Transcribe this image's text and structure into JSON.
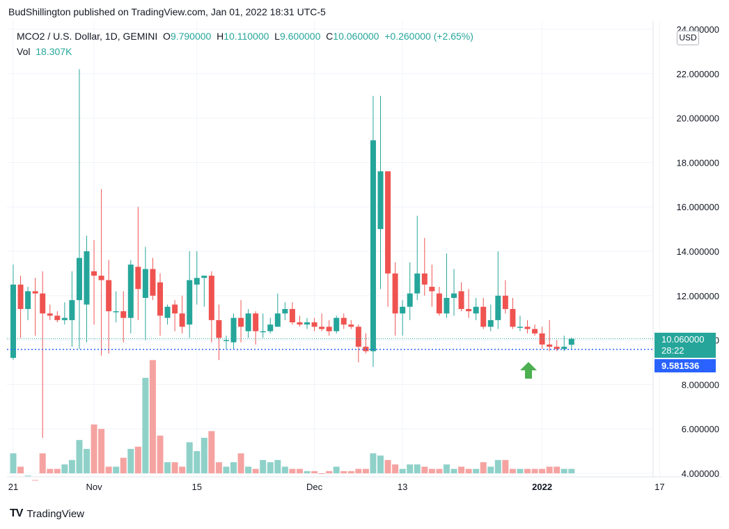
{
  "header": {
    "published": "BudShillington published on TradingView.com, Jan 01, 2022 18:31 UTC-5"
  },
  "legend": {
    "symbol": "MCO2 / U.S. Dollar, 1D, GEMINI",
    "o_label": "O",
    "o_value": "9.790000",
    "h_label": "H",
    "h_value": "10.110000",
    "l_label": "L",
    "l_value": "9.600000",
    "c_label": "C",
    "c_value": "10.060000",
    "change": "+0.260000 (+2.65%)",
    "vol_label": "Vol",
    "vol_value": "18.307K"
  },
  "currency_button": "USD",
  "price_tags": {
    "last": "10.060000",
    "countdown": "28:22",
    "avg": "9.581536"
  },
  "footer": {
    "brand": "TradingView",
    "logo_text": "TV"
  },
  "colors": {
    "up": "#26a69a",
    "down": "#ef5350",
    "vol_up": "#8fd1c9",
    "vol_down": "#f5a3a1",
    "avg_line": "#2962ff",
    "arrow": "#4caf50"
  },
  "chart_data": {
    "type": "candlestick",
    "ylim": [
      4,
      24
    ],
    "y_ticks": [
      "24.000000",
      "22.000000",
      "20.000000",
      "18.000000",
      "16.000000",
      "14.000000",
      "12.000000",
      "10.000000",
      "8.000000",
      "6.000000",
      "4.000000"
    ],
    "x_ticks": [
      {
        "label": "21",
        "index": 0
      },
      {
        "label": "Nov",
        "index": 11
      },
      {
        "label": "15",
        "index": 25
      },
      {
        "label": "Dec",
        "index": 41
      },
      {
        "label": "13",
        "index": 53
      },
      {
        "label": "2022",
        "index": 72
      },
      {
        "label": "17",
        "index": 88
      }
    ],
    "last_price": 10.06,
    "avg_price": 9.581536,
    "candles": [
      {
        "o": 9.2,
        "h": 13.4,
        "l": 9.1,
        "c": 12.5,
        "v": 4.9
      },
      {
        "o": 12.5,
        "h": 12.9,
        "l": 10.1,
        "c": 11.4,
        "v": 4.3
      },
      {
        "o": 11.4,
        "h": 12.4,
        "l": 10.9,
        "c": 12.2,
        "v": 3.9
      },
      {
        "o": 12.2,
        "h": 12.8,
        "l": 10.2,
        "c": 12.1,
        "v": 3.7
      },
      {
        "o": 12.1,
        "h": 13.1,
        "l": 5.6,
        "c": 11.2,
        "v": 4.9
      },
      {
        "o": 11.2,
        "h": 11.6,
        "l": 10.9,
        "c": 11.1,
        "v": 4.2
      },
      {
        "o": 11.1,
        "h": 11.3,
        "l": 10.8,
        "c": 10.9,
        "v": 4.2
      },
      {
        "o": 10.9,
        "h": 11.7,
        "l": 10.7,
        "c": 11.0,
        "v": 4.4
      },
      {
        "o": 10.9,
        "h": 13.1,
        "l": 9.7,
        "c": 11.8,
        "v": 4.6
      },
      {
        "o": 11.8,
        "h": 22.2,
        "l": 9.6,
        "c": 13.7,
        "v": 5.5
      },
      {
        "o": 11.6,
        "h": 14.7,
        "l": 9.9,
        "c": 14.0,
        "v": 5.1
      },
      {
        "o": 13.1,
        "h": 14.5,
        "l": 10.7,
        "c": 12.9,
        "v": 6.2
      },
      {
        "o": 12.9,
        "h": 16.8,
        "l": 9.3,
        "c": 12.7,
        "v": 6.0
      },
      {
        "o": 12.7,
        "h": 13.6,
        "l": 9.4,
        "c": 11.3,
        "v": 4.3
      },
      {
        "o": 11.3,
        "h": 12.2,
        "l": 10.8,
        "c": 11.3,
        "v": 4.3
      },
      {
        "o": 11.3,
        "h": 12.2,
        "l": 9.9,
        "c": 11.0,
        "v": 4.7
      },
      {
        "o": 11.0,
        "h": 13.6,
        "l": 10.3,
        "c": 13.4,
        "v": 5.1
      },
      {
        "o": 13.3,
        "h": 16.0,
        "l": 10.9,
        "c": 12.3,
        "v": 5.2
      },
      {
        "o": 11.9,
        "h": 14.2,
        "l": 10.0,
        "c": 13.2,
        "v": 8.3
      },
      {
        "o": 13.2,
        "h": 13.7,
        "l": 11.8,
        "c": 12.0,
        "v": 9.1
      },
      {
        "o": 12.6,
        "h": 13.0,
        "l": 10.2,
        "c": 11.1,
        "v": 5.7
      },
      {
        "o": 11.0,
        "h": 11.6,
        "l": 10.7,
        "c": 11.5,
        "v": 4.5
      },
      {
        "o": 11.6,
        "h": 11.8,
        "l": 10.4,
        "c": 11.2,
        "v": 4.5
      },
      {
        "o": 11.2,
        "h": 12.0,
        "l": 10.3,
        "c": 10.6,
        "v": 4.3
      },
      {
        "o": 10.7,
        "h": 14.0,
        "l": 10.1,
        "c": 12.7,
        "v": 5.4
      },
      {
        "o": 12.5,
        "h": 14.0,
        "l": 11.6,
        "c": 12.8,
        "v": 5.0
      },
      {
        "o": 12.8,
        "h": 12.9,
        "l": 11.5,
        "c": 12.9,
        "v": 5.6
      },
      {
        "o": 12.9,
        "h": 13.1,
        "l": 9.9,
        "c": 10.9,
        "v": 5.9
      },
      {
        "o": 10.9,
        "h": 11.6,
        "l": 9.1,
        "c": 10.1,
        "v": 4.5
      },
      {
        "o": 10.0,
        "h": 10.2,
        "l": 9.6,
        "c": 10.0,
        "v": 4.3
      },
      {
        "o": 9.9,
        "h": 11.2,
        "l": 9.6,
        "c": 11.0,
        "v": 4.5
      },
      {
        "o": 11.0,
        "h": 11.8,
        "l": 9.9,
        "c": 10.6,
        "v": 4.9
      },
      {
        "o": 10.4,
        "h": 11.4,
        "l": 10.1,
        "c": 11.2,
        "v": 4.3
      },
      {
        "o": 11.2,
        "h": 11.3,
        "l": 9.8,
        "c": 10.4,
        "v": 4.2
      },
      {
        "o": 10.4,
        "h": 11.2,
        "l": 10.1,
        "c": 10.4,
        "v": 4.6
      },
      {
        "o": 10.4,
        "h": 11.0,
        "l": 10.3,
        "c": 10.7,
        "v": 4.5
      },
      {
        "o": 10.6,
        "h": 12.1,
        "l": 10.6,
        "c": 11.2,
        "v": 4.6
      },
      {
        "o": 11.2,
        "h": 11.7,
        "l": 10.9,
        "c": 11.4,
        "v": 4.3
      },
      {
        "o": 11.4,
        "h": 11.7,
        "l": 10.7,
        "c": 10.8,
        "v": 4.2
      },
      {
        "o": 10.8,
        "h": 11.1,
        "l": 10.6,
        "c": 10.7,
        "v": 4.2
      },
      {
        "o": 10.7,
        "h": 11.0,
        "l": 10.5,
        "c": 10.8,
        "v": 4.1
      },
      {
        "o": 10.8,
        "h": 11.0,
        "l": 10.4,
        "c": 10.6,
        "v": 4.1
      },
      {
        "o": 10.6,
        "h": 11.2,
        "l": 10.4,
        "c": 10.5,
        "v": 4.0
      },
      {
        "o": 10.6,
        "h": 10.9,
        "l": 10.2,
        "c": 10.4,
        "v": 4.1
      },
      {
        "o": 10.4,
        "h": 11.1,
        "l": 10.3,
        "c": 11.0,
        "v": 4.3
      },
      {
        "o": 11.0,
        "h": 11.2,
        "l": 10.5,
        "c": 10.7,
        "v": 4.1
      },
      {
        "o": 10.7,
        "h": 10.9,
        "l": 10.5,
        "c": 10.6,
        "v": 4.1
      },
      {
        "o": 10.6,
        "h": 10.7,
        "l": 9.0,
        "c": 9.7,
        "v": 4.2
      },
      {
        "o": 9.7,
        "h": 10.3,
        "l": 9.4,
        "c": 9.5,
        "v": 4.2
      },
      {
        "o": 9.5,
        "h": 21.0,
        "l": 8.8,
        "c": 19.0,
        "v": 4.9
      },
      {
        "o": 15.0,
        "h": 21.0,
        "l": 12.3,
        "c": 17.6,
        "v": 4.8
      },
      {
        "o": 17.6,
        "h": 17.6,
        "l": 11.5,
        "c": 13.0,
        "v": 4.6
      },
      {
        "o": 13.0,
        "h": 13.5,
        "l": 10.2,
        "c": 11.2,
        "v": 4.4
      },
      {
        "o": 11.2,
        "h": 11.8,
        "l": 10.2,
        "c": 11.5,
        "v": 4.2
      },
      {
        "o": 11.5,
        "h": 13.5,
        "l": 10.9,
        "c": 12.1,
        "v": 4.4
      },
      {
        "o": 12.1,
        "h": 15.6,
        "l": 11.8,
        "c": 13.0,
        "v": 4.4
      },
      {
        "o": 13.0,
        "h": 14.6,
        "l": 12.0,
        "c": 12.5,
        "v": 4.3
      },
      {
        "o": 12.4,
        "h": 13.4,
        "l": 11.5,
        "c": 12.2,
        "v": 4.2
      },
      {
        "o": 12.1,
        "h": 12.4,
        "l": 11.1,
        "c": 11.2,
        "v": 4.2
      },
      {
        "o": 11.2,
        "h": 13.9,
        "l": 11.0,
        "c": 11.9,
        "v": 4.4
      },
      {
        "o": 11.9,
        "h": 13.2,
        "l": 11.1,
        "c": 12.1,
        "v": 4.2
      },
      {
        "o": 12.2,
        "h": 12.6,
        "l": 11.3,
        "c": 11.4,
        "v": 4.3
      },
      {
        "o": 11.4,
        "h": 12.3,
        "l": 11.0,
        "c": 11.3,
        "v": 4.2
      },
      {
        "o": 11.2,
        "h": 11.9,
        "l": 10.9,
        "c": 11.5,
        "v": 4.2
      },
      {
        "o": 11.5,
        "h": 11.9,
        "l": 10.5,
        "c": 10.6,
        "v": 4.5
      },
      {
        "o": 10.6,
        "h": 11.6,
        "l": 10.4,
        "c": 10.9,
        "v": 4.3
      },
      {
        "o": 10.9,
        "h": 14.0,
        "l": 10.5,
        "c": 12.0,
        "v": 4.6
      },
      {
        "o": 12.0,
        "h": 12.7,
        "l": 11.2,
        "c": 11.4,
        "v": 4.6
      },
      {
        "o": 11.4,
        "h": 11.9,
        "l": 10.5,
        "c": 10.6,
        "v": 4.2
      },
      {
        "o": 10.6,
        "h": 11.1,
        "l": 10.4,
        "c": 10.6,
        "v": 4.2
      },
      {
        "o": 10.6,
        "h": 10.9,
        "l": 10.3,
        "c": 10.5,
        "v": 4.2
      },
      {
        "o": 10.5,
        "h": 10.7,
        "l": 10.2,
        "c": 10.3,
        "v": 4.2
      },
      {
        "o": 10.3,
        "h": 10.6,
        "l": 9.6,
        "c": 9.8,
        "v": 4.2
      },
      {
        "o": 9.8,
        "h": 10.9,
        "l": 9.5,
        "c": 9.7,
        "v": 4.3
      },
      {
        "o": 9.7,
        "h": 10.0,
        "l": 9.5,
        "c": 9.6,
        "v": 4.3
      },
      {
        "o": 9.6,
        "h": 10.2,
        "l": 9.5,
        "c": 9.7,
        "v": 4.2
      },
      {
        "o": 9.79,
        "h": 10.11,
        "l": 9.6,
        "c": 10.06,
        "v": 4.2
      }
    ]
  }
}
